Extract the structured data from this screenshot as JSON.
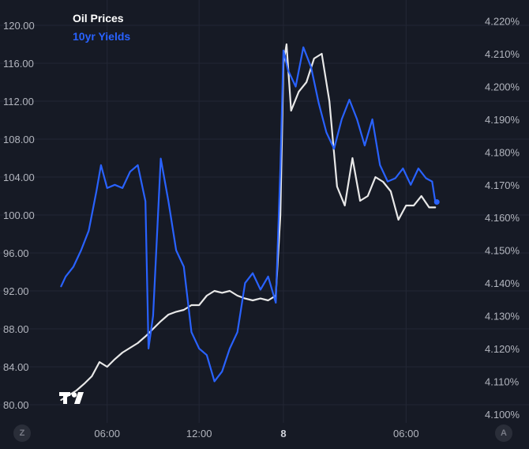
{
  "legend": {
    "oil_label": "Oil Prices",
    "yield_label": "10yr Yields",
    "oil_color": "#e8e8e8",
    "yield_color": "#2962ff"
  },
  "corner_buttons": {
    "left": "Z",
    "right": "A"
  },
  "logo_icon": "tradingview-logo-icon",
  "chart_data": {
    "type": "line",
    "x_ticks": [
      {
        "label": "06:00",
        "x": 6
      },
      {
        "label": "12:00",
        "x": 12
      },
      {
        "label": "8",
        "x": 17.5,
        "bold": true
      },
      {
        "label": "06:00",
        "x": 25.5
      }
    ],
    "left_axis": {
      "ylim": [
        78.5,
        122
      ],
      "ticks": [
        "80.00",
        "84.00",
        "88.00",
        "92.00",
        "96.00",
        "100.00",
        "104.00",
        "108.00",
        "112.00",
        "116.00",
        "120.00"
      ],
      "tick_values": [
        80,
        84,
        88,
        92,
        96,
        100,
        104,
        108,
        112,
        116,
        120
      ]
    },
    "right_axis": {
      "ylim": [
        4.0985,
        4.2245
      ],
      "ticks": [
        "4.100%",
        "4.110%",
        "4.120%",
        "4.130%",
        "4.140%",
        "4.150%",
        "4.160%",
        "4.170%",
        "4.180%",
        "4.190%",
        "4.200%",
        "4.210%",
        "4.220%"
      ],
      "tick_values": [
        4.1,
        4.11,
        4.12,
        4.13,
        4.14,
        4.15,
        4.16,
        4.17,
        4.18,
        4.19,
        4.2,
        4.21,
        4.22
      ]
    },
    "grid": true,
    "series": [
      {
        "name": "Oil Prices",
        "axis": "left",
        "color": "#e8e8e8",
        "x": [
          3.0,
          3.5,
          4.0,
          4.5,
          5.0,
          5.5,
          6.0,
          6.5,
          7.0,
          7.5,
          8.0,
          8.5,
          9.0,
          9.5,
          10.0,
          10.5,
          11.0,
          11.5,
          12.0,
          12.5,
          13.0,
          13.5,
          14.0,
          14.5,
          15.0,
          15.5,
          16.0,
          16.5,
          17.0,
          17.3,
          17.5,
          17.7,
          18.0,
          18.5,
          19.0,
          19.5,
          20.0,
          20.5,
          21.0,
          21.5,
          22.0,
          22.5,
          23.0,
          23.5,
          24.0,
          24.5,
          25.0,
          25.5,
          26.0,
          26.5,
          27.0,
          27.4
        ],
        "values": [
          80.5,
          81.0,
          81.5,
          82.2,
          83.0,
          84.5,
          84.0,
          84.8,
          85.5,
          86.0,
          86.5,
          87.2,
          88.0,
          88.8,
          89.5,
          89.8,
          90.0,
          90.5,
          90.5,
          91.5,
          92.0,
          91.8,
          92.0,
          91.5,
          91.2,
          91.0,
          91.2,
          91.0,
          91.5,
          100.0,
          116.0,
          118.0,
          111.0,
          113.0,
          114.0,
          116.5,
          117.0,
          112.0,
          103.0,
          101.0,
          106.0,
          101.5,
          102.0,
          104.0,
          103.5,
          102.5,
          99.5,
          101.0,
          101.0,
          102.0,
          100.8,
          100.8
        ]
      },
      {
        "name": "10yr Yields",
        "axis": "right",
        "color": "#2962ff",
        "x": [
          3.0,
          3.3,
          3.8,
          4.3,
          4.8,
          5.3,
          5.6,
          6.0,
          6.5,
          7.0,
          7.5,
          8.0,
          8.5,
          8.7,
          9.0,
          9.5,
          10.0,
          10.5,
          11.0,
          11.5,
          12.0,
          12.5,
          13.0,
          13.5,
          14.0,
          14.5,
          15.0,
          15.5,
          16.0,
          16.5,
          17.0,
          17.3,
          17.5,
          17.8,
          18.3,
          18.8,
          19.3,
          19.8,
          20.3,
          20.8,
          21.3,
          21.8,
          22.3,
          22.8,
          23.3,
          23.8,
          24.3,
          24.8,
          25.3,
          25.8,
          26.3,
          26.8,
          27.2,
          27.4
        ],
        "values": [
          4.139,
          4.142,
          4.145,
          4.15,
          4.156,
          4.168,
          4.176,
          4.169,
          4.17,
          4.169,
          4.174,
          4.176,
          4.165,
          4.12,
          4.13,
          4.178,
          4.165,
          4.15,
          4.145,
          4.125,
          4.12,
          4.118,
          4.11,
          4.113,
          4.12,
          4.125,
          4.14,
          4.143,
          4.138,
          4.142,
          4.134,
          4.175,
          4.211,
          4.205,
          4.2,
          4.212,
          4.206,
          4.195,
          4.186,
          4.181,
          4.19,
          4.196,
          4.19,
          4.182,
          4.19,
          4.176,
          4.171,
          4.172,
          4.175,
          4.17,
          4.175,
          4.172,
          4.171,
          4.165
        ]
      }
    ]
  }
}
